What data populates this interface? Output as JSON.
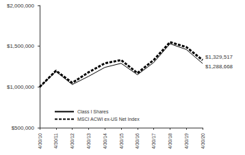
{
  "chart_data": {
    "type": "line",
    "categories": [
      "4/30/10",
      "4/30/11",
      "4/30/12",
      "4/30/13",
      "4/30/14",
      "4/30/15",
      "4/30/16",
      "4/30/17",
      "4/30/18",
      "4/30/19",
      "4/30/20"
    ],
    "series": [
      {
        "name": "Class I Shares",
        "color": "#000000",
        "line_style": "solid",
        "values": [
          1000000,
          1190000,
          1030000,
          1130000,
          1240000,
          1290000,
          1150000,
          1300000,
          1530000,
          1460000,
          1288668
        ],
        "value_labels": [
          null,
          null,
          null,
          null,
          null,
          null,
          null,
          null,
          null,
          null,
          "$1,288,668"
        ]
      },
      {
        "name": "MSCI ACWI ex-US Net Index",
        "color": "#000000",
        "line_style": "dashed",
        "values": [
          1000000,
          1200000,
          1050000,
          1180000,
          1290000,
          1330000,
          1170000,
          1330000,
          1550000,
          1490000,
          1329517
        ],
        "value_labels": [
          null,
          null,
          null,
          null,
          null,
          null,
          null,
          null,
          null,
          null,
          "$1,329,517"
        ]
      }
    ],
    "ylim": [
      500000,
      2000000
    ],
    "yticks": [
      {
        "value": 500000,
        "label": "$500,000"
      },
      {
        "value": 1000000,
        "label": "$1,000,000"
      },
      {
        "value": 1500000,
        "label": "$1,500,000"
      },
      {
        "value": 2000000,
        "label": "$2,000,000"
      }
    ],
    "grid": false,
    "legend": "lower left",
    "data_labels": true
  }
}
